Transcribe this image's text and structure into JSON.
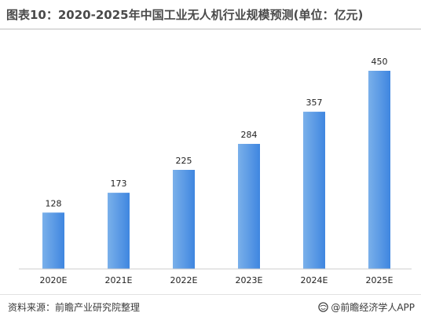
{
  "title": "图表10：2020-2025年中国工业无人机行业规模预测(单位：亿元)",
  "source": "资料来源：前瞻产业研究院整理",
  "brand": "@前瞻经济学人APP",
  "icons": {
    "brand": "globe-icon"
  },
  "colors": {
    "bar_light": "#7ab0ea",
    "bar_dark": "#3f86e0",
    "axis": "#cccccc"
  },
  "chart_data": {
    "type": "bar",
    "title": "图表10：2020-2025年中国工业无人机行业规模预测(单位：亿元)",
    "categories": [
      "2020E",
      "2021E",
      "2022E",
      "2023E",
      "2024E",
      "2025E"
    ],
    "values": [
      128,
      173,
      225,
      284,
      357,
      450
    ],
    "data_labels": [
      "128",
      "173",
      "225",
      "284",
      "357",
      "450"
    ],
    "unit": "亿元",
    "ylim": [
      0,
      450
    ],
    "grid": false,
    "legend": "none"
  }
}
